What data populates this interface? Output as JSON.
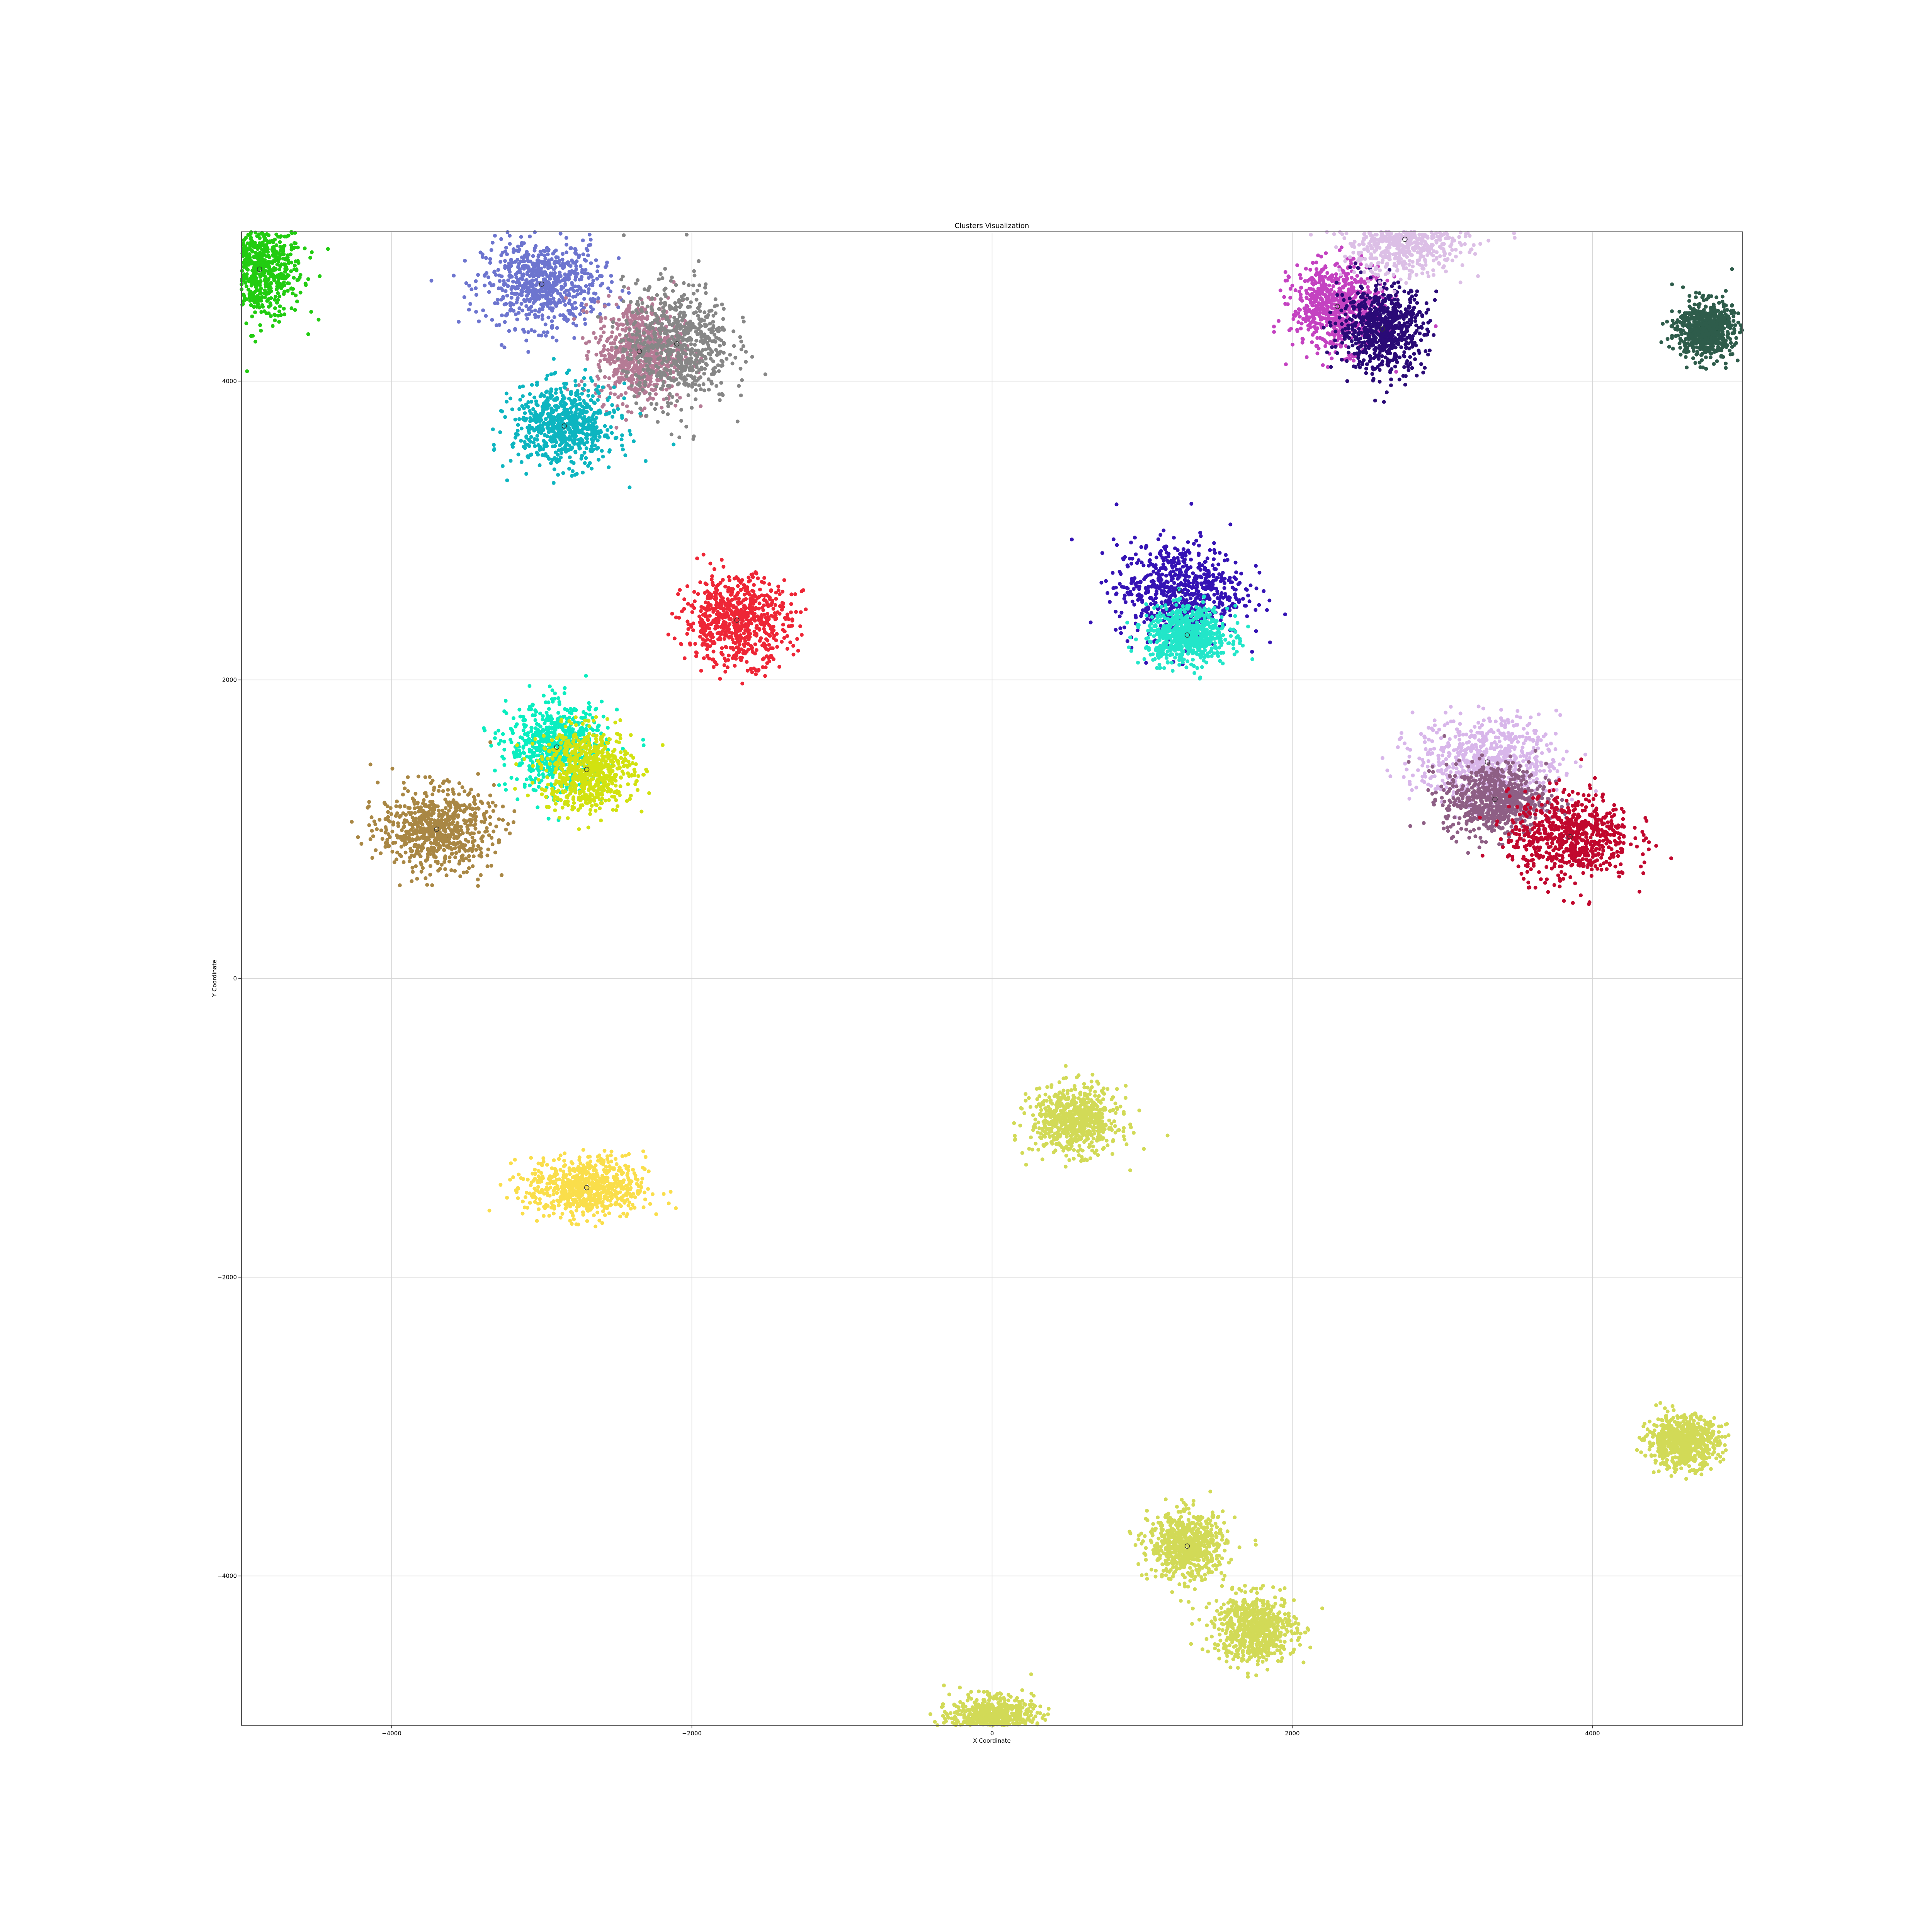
{
  "chart_data": {
    "type": "scatter",
    "title": "Clusters Visualization",
    "xlabel": "X Coordinate",
    "ylabel": "Y Coordinate",
    "xlim": [
      -5000,
      5000
    ],
    "ylim": [
      -5000,
      5000
    ],
    "x_ticks": [
      -4000,
      -2000,
      0,
      2000,
      4000
    ],
    "y_ticks": [
      -4000,
      -2000,
      0,
      2000,
      4000
    ],
    "x_tick_labels": [
      "−4000",
      "−2000",
      "0",
      "2000",
      "4000"
    ],
    "y_tick_labels": [
      "−4000",
      "−2000",
      "0",
      "2000",
      "4000"
    ],
    "grid": true,
    "legend": "none",
    "colors": {
      "grid": "#d6d6d6",
      "frame": "#555555",
      "centroid_edge": "#333333"
    },
    "clusters": [
      {
        "center": [
          -4880,
          4750
        ],
        "spread": [
          170,
          200
        ],
        "color": "#22cc11",
        "centroid": true
      },
      {
        "center": [
          -3000,
          4650
        ],
        "spread": [
          230,
          170
        ],
        "color": "#6d75cf",
        "centroid": true
      },
      {
        "center": [
          -2350,
          4200
        ],
        "spread": [
          170,
          200
        ],
        "color": "#b57b95",
        "centroid": true
      },
      {
        "center": [
          -2100,
          4250
        ],
        "spread": [
          210,
          240
        ],
        "color": "#878787",
        "centroid": true
      },
      {
        "center": [
          -2850,
          3700
        ],
        "spread": [
          200,
          160
        ],
        "color": "#0db5c0",
        "centroid": true
      },
      {
        "center": [
          -1700,
          2400
        ],
        "spread": [
          210,
          170
        ],
        "color": "#ee2636",
        "centroid": true
      },
      {
        "center": [
          -2900,
          1550
        ],
        "spread": [
          190,
          170
        ],
        "color": "#0aeec0",
        "centroid": true
      },
      {
        "center": [
          -2700,
          1400
        ],
        "spread": [
          180,
          160
        ],
        "color": "#d2e210",
        "centroid": true
      },
      {
        "center": [
          -3700,
          1000
        ],
        "spread": [
          220,
          160
        ],
        "color": "#a98744",
        "centroid": true
      },
      {
        "center": [
          -2700,
          -1400
        ],
        "spread": [
          230,
          120
        ],
        "color": "#fade4b",
        "centroid": true
      },
      {
        "center": [
          1250,
          2600
        ],
        "spread": [
          250,
          190
        ],
        "color": "#3513b5",
        "centroid": true
      },
      {
        "center": [
          1300,
          2300
        ],
        "spread": [
          160,
          110
        ],
        "color": "#22e6c9",
        "centroid": true
      },
      {
        "center": [
          2300,
          4500
        ],
        "spread": [
          180,
          170
        ],
        "color": "#c442c1",
        "centroid": true
      },
      {
        "center": [
          2600,
          4350
        ],
        "spread": [
          170,
          170
        ],
        "color": "#2a0a77",
        "centroid": true
      },
      {
        "center": [
          2750,
          4950
        ],
        "spread": [
          240,
          140
        ],
        "color": "#dcbfe6",
        "centroid": true
      },
      {
        "center": [
          4750,
          4350
        ],
        "spread": [
          110,
          110
        ],
        "color": "#2e5c4b",
        "centroid": false
      },
      {
        "center": [
          3300,
          1450
        ],
        "spread": [
          280,
          170
        ],
        "color": "#d8b6ea",
        "centroid": true
      },
      {
        "center": [
          3350,
          1200
        ],
        "spread": [
          200,
          140
        ],
        "color": "#8e5f85",
        "centroid": true
      },
      {
        "center": [
          3850,
          950
        ],
        "spread": [
          240,
          170
        ],
        "color": "#c1082e",
        "centroid": true
      },
      {
        "center": [
          550,
          -950
        ],
        "spread": [
          170,
          130
        ],
        "color": "#d2da57",
        "centroid": false
      },
      {
        "center": [
          4600,
          -3100
        ],
        "spread": [
          140,
          100
        ],
        "color": "#d2da57",
        "centroid": false
      },
      {
        "center": [
          1300,
          -3800
        ],
        "spread": [
          150,
          130
        ],
        "color": "#d2da57",
        "centroid": true
      },
      {
        "center": [
          1750,
          -4350
        ],
        "spread": [
          160,
          130
        ],
        "color": "#d2da57",
        "centroid": false
      },
      {
        "center": [
          0,
          -4950
        ],
        "spread": [
          160,
          80
        ],
        "color": "#d2da57",
        "centroid": false
      }
    ]
  }
}
